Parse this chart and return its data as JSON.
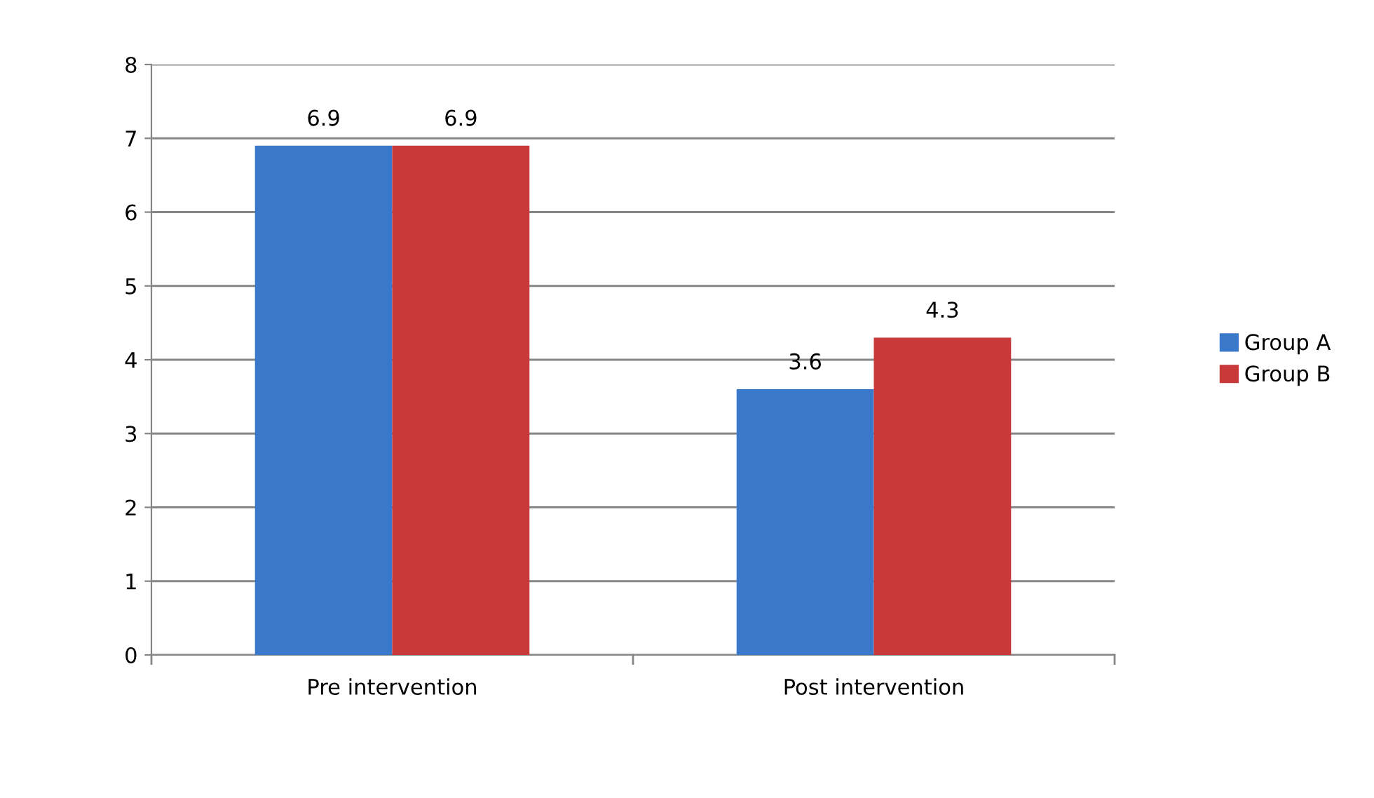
{
  "chart_data": {
    "type": "bar",
    "categories": [
      "Pre intervention",
      "Post intervention"
    ],
    "series": [
      {
        "name": "Group A",
        "color": "#3a78c9",
        "values": [
          6.9,
          3.6
        ]
      },
      {
        "name": "Group B",
        "color": "#c9393a",
        "values": [
          6.9,
          4.3
        ]
      }
    ],
    "ylim": [
      0,
      8
    ],
    "yticks": [
      0,
      1,
      2,
      3,
      4,
      5,
      6,
      7,
      8
    ],
    "grid": "y",
    "legend": "right",
    "data_labels": true
  }
}
